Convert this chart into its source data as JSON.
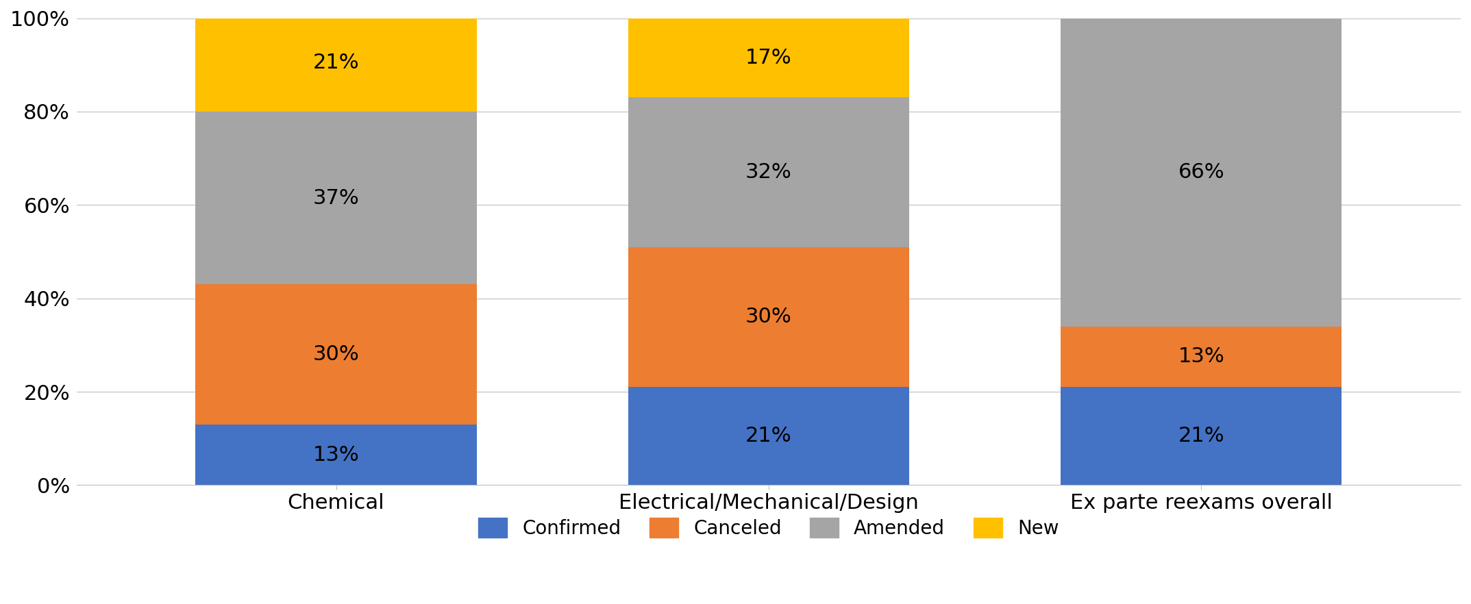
{
  "categories": [
    "Chemical",
    "Electrical/Mechanical/Design",
    "Ex parte reexams overall"
  ],
  "series": {
    "Confirmed": [
      13,
      21,
      21
    ],
    "Canceled": [
      30,
      30,
      13
    ],
    "Amended": [
      37,
      32,
      66
    ],
    "New": [
      21,
      17,
      0
    ]
  },
  "colors": {
    "Confirmed": "#4472C4",
    "Canceled": "#ED7D31",
    "Amended": "#A5A5A5",
    "New": "#FFC000"
  },
  "labels": {
    "Confirmed": [
      13,
      21,
      21
    ],
    "Canceled": [
      30,
      30,
      13
    ],
    "Amended": [
      37,
      32,
      66
    ],
    "New": [
      21,
      17,
      null
    ]
  },
  "ylim": [
    0,
    100
  ],
  "yticks": [
    0,
    20,
    40,
    60,
    80,
    100
  ],
  "ytick_labels": [
    "0%",
    "20%",
    "40%",
    "60%",
    "80%",
    "100%"
  ],
  "bar_width": 0.65,
  "figsize": [
    21.47,
    8.82
  ],
  "dpi": 100,
  "legend_order": [
    "Confirmed",
    "Canceled",
    "Amended",
    "New"
  ],
  "font_size_labels": 22,
  "font_size_ticks": 22,
  "font_size_legend": 20,
  "background_color": "#FFFFFF",
  "grid_color": "#BFBFBF"
}
